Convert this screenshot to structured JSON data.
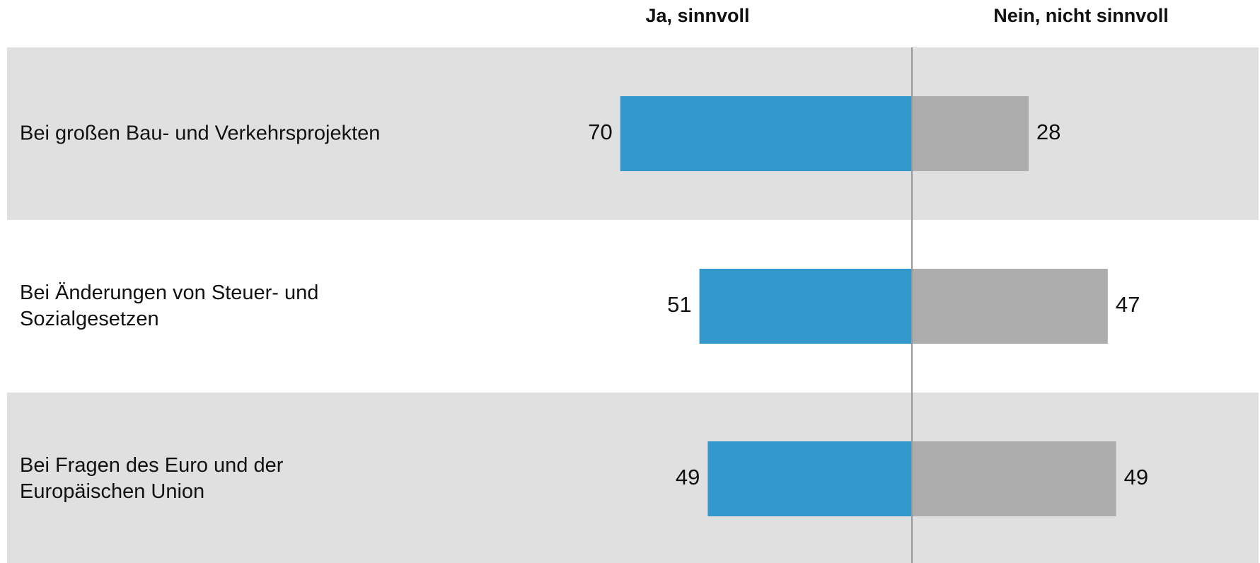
{
  "chart_data": {
    "type": "diverging_bar",
    "categories": [
      "Bei großen Bau- und Verkehrsprojekten",
      "Bei Änderungen von Steuer- und\nSozialgesetzen",
      "Bei Fragen des Euro und der\nEuropäischen Union"
    ],
    "series": [
      {
        "name": "Ja, sinnvoll",
        "color": "#3399cc",
        "values": [
          70,
          51,
          49
        ]
      },
      {
        "name": "Nein, nicht sinnvoll",
        "color": "#adadad",
        "values": [
          28,
          47,
          49
        ]
      }
    ]
  }
}
